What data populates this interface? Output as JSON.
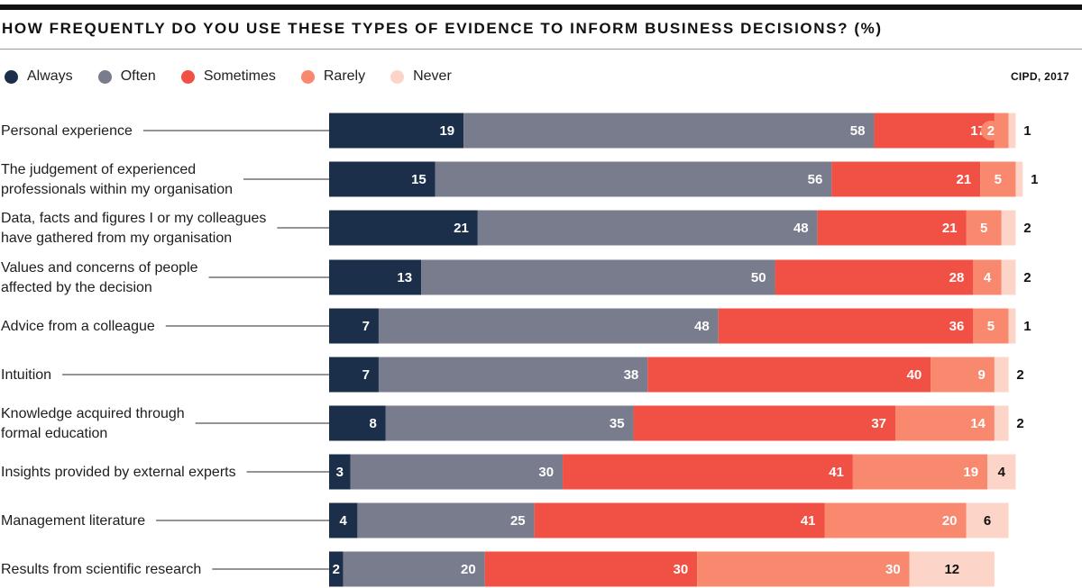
{
  "title": "HOW FREQUENTLY DO YOU USE THESE TYPES OF EVIDENCE TO INFORM BUSINESS DECISIONS? (%)",
  "source": "CIPD, 2017",
  "colors": {
    "Always": "#1b2f4a",
    "Often": "#787c8c",
    "Sometimes": "#f15144",
    "Rarely": "#f8886e",
    "Never": "#fdd5c8"
  },
  "chart_data": {
    "type": "bar",
    "orientation": "horizontal",
    "stacked": true,
    "title": "HOW FREQUENTLY DO YOU USE THESE TYPES OF EVIDENCE TO INFORM BUSINESS DECISIONS? (%)",
    "legend": [
      "Always",
      "Often",
      "Sometimes",
      "Rarely",
      "Never"
    ],
    "legend_position": "top-left",
    "grid": false,
    "xlim": [
      0,
      100
    ],
    "categories": [
      [
        "Personal experience"
      ],
      [
        "The judgement of experienced",
        "professionals within my organisation"
      ],
      [
        "Data, facts and figures I or my colleagues",
        "have gathered from my organisation"
      ],
      [
        "Values and concerns of people",
        "affected by the decision"
      ],
      [
        "Advice from a colleague"
      ],
      [
        "Intuition"
      ],
      [
        "Knowledge acquired through",
        "formal education"
      ],
      [
        "Insights provided by external experts"
      ],
      [
        "Management literature"
      ],
      [
        "Results from scientific research"
      ]
    ],
    "series": [
      {
        "name": "Always",
        "values": [
          19,
          15,
          21,
          13,
          7,
          7,
          8,
          3,
          4,
          2
        ]
      },
      {
        "name": "Often",
        "values": [
          58,
          56,
          48,
          50,
          48,
          38,
          35,
          30,
          25,
          20
        ]
      },
      {
        "name": "Sometimes",
        "values": [
          17,
          21,
          21,
          28,
          36,
          40,
          37,
          41,
          41,
          30
        ]
      },
      {
        "name": "Rarely",
        "values": [
          2,
          5,
          5,
          4,
          5,
          9,
          14,
          19,
          20,
          30
        ]
      },
      {
        "name": "Never",
        "values": [
          1,
          1,
          2,
          2,
          1,
          2,
          2,
          4,
          6,
          12
        ]
      }
    ]
  }
}
